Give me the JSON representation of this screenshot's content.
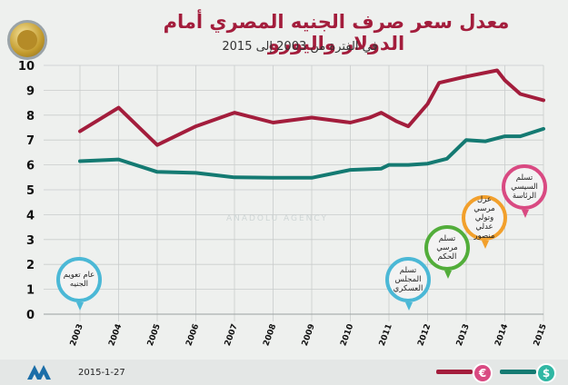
{
  "header": {
    "title": "معدل سعر صرف الجنيه المصري أمام الدولار واليورو",
    "subtitle": "في الفترة من 2003 إلى 2015"
  },
  "footer": {
    "date": "2015-1-27"
  },
  "watermark": "ANADOLU AGENCY",
  "events": [
    {
      "text": "عام تعويم الجنيه",
      "color": "#4bb8d6"
    },
    {
      "text": "تسلم المجلس العسكري",
      "color": "#4bb8d6"
    },
    {
      "text": "تسلم مرسي الحكم",
      "color": "#52ad3a"
    },
    {
      "text": "عزل مرسي وتولي عدلي منصور",
      "color": "#f2a02c"
    },
    {
      "text": "تسلم السيسي الرئاسة",
      "color": "#d94a82"
    }
  ],
  "legend": {
    "euro_symbol": "€",
    "dollar_symbol": "$",
    "euro_color": "#a31d3c",
    "dollar_color": "#147a72"
  },
  "chart_data": {
    "type": "line",
    "ylim": [
      0,
      10
    ],
    "yticks": [
      "0",
      "1",
      "2",
      "3",
      "4",
      "5",
      "6",
      "7",
      "8",
      "9",
      "10"
    ],
    "xticks": [
      "2003",
      "2004",
      "2005",
      "2006",
      "2007",
      "2008",
      "2009",
      "2010",
      "2011",
      "2012",
      "2013",
      "2014",
      "2015"
    ],
    "series": [
      {
        "color": "#a31d3c",
        "x": [
          2003,
          2004,
          2005,
          2006,
          2007,
          2008,
          2009,
          2010,
          2010.5,
          2010.8,
          2011.2,
          2011.5,
          2012,
          2012.3,
          2013,
          2013.8,
          2014,
          2014.4,
          2015
        ],
        "values": [
          7.35,
          8.3,
          6.8,
          7.55,
          8.1,
          7.7,
          7.9,
          7.7,
          7.9,
          8.1,
          7.75,
          7.55,
          8.45,
          9.3,
          9.55,
          9.8,
          9.4,
          8.85,
          8.6
        ]
      },
      {
        "color": "#147a72",
        "x": [
          2003,
          2004,
          2005,
          2006,
          2007,
          2008,
          2009,
          2010,
          2010.8,
          2011,
          2011.5,
          2012,
          2012.5,
          2013,
          2013.5,
          2014,
          2014.4,
          2015
        ],
        "values": [
          6.15,
          6.22,
          5.72,
          5.68,
          5.5,
          5.48,
          5.48,
          5.8,
          5.85,
          6.0,
          6.0,
          6.05,
          6.25,
          7.0,
          6.95,
          7.15,
          7.15,
          7.45
        ]
      }
    ]
  }
}
